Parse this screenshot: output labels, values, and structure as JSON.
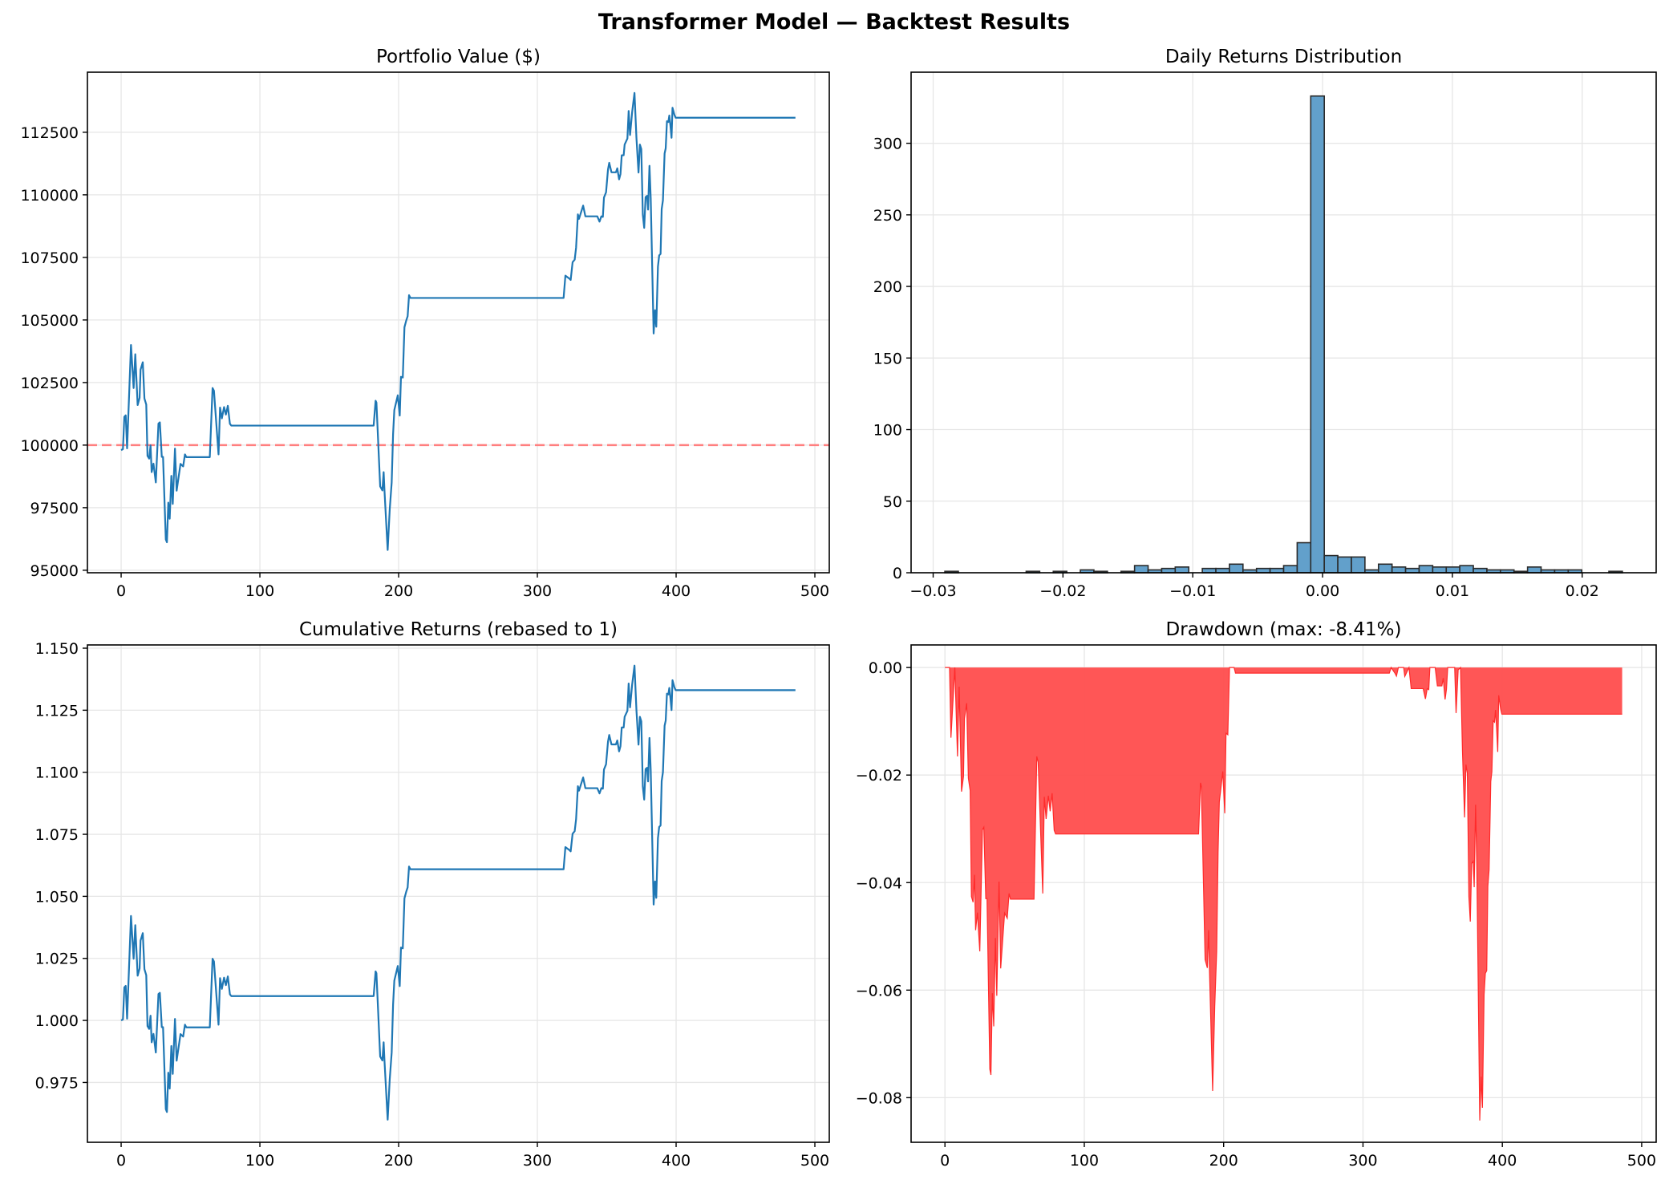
{
  "title": "Transformer Model — Backtest Results",
  "colors": {
    "line": "#1f77b4",
    "hist": "#62a0cb",
    "hist_edge": "#2b2b2b",
    "ref": "#ff7f7f",
    "dd_fill": "#ff4d4d",
    "dd_line": "#ff2a2a"
  },
  "chart_data": [
    {
      "type": "line",
      "title": "Portfolio Value ($)",
      "xlabel": "",
      "ylabel": "",
      "xlim": [
        -24.3,
        510.4
      ],
      "ylim": [
        94900,
        114900
      ],
      "grid": true,
      "xticks": [
        {
          "v": 0,
          "label": "0"
        },
        {
          "v": 100,
          "label": "100"
        },
        {
          "v": 200,
          "label": "200"
        },
        {
          "v": 300,
          "label": "300"
        },
        {
          "v": 400,
          "label": "400"
        },
        {
          "v": 500,
          "label": "500"
        }
      ],
      "yticks": [
        {
          "v": 95000,
          "label": "95000"
        },
        {
          "v": 97500,
          "label": "97500"
        },
        {
          "v": 100000,
          "label": "100000"
        },
        {
          "v": 102500,
          "label": "102500"
        },
        {
          "v": 105000,
          "label": "105000"
        },
        {
          "v": 107500,
          "label": "107500"
        },
        {
          "v": 110000,
          "label": "110000"
        },
        {
          "v": 112500,
          "label": "112500"
        }
      ],
      "reference_line": {
        "y": 100000,
        "style": "dashed"
      },
      "points": [
        [
          0,
          99800
        ],
        [
          1.3,
          99840
        ],
        [
          2.3,
          101130
        ],
        [
          3.3,
          101190
        ],
        [
          4.3,
          99870
        ],
        [
          7.1,
          104000
        ],
        [
          9,
          102280
        ],
        [
          10.2,
          103630
        ],
        [
          11.9,
          101600
        ],
        [
          13.3,
          101890
        ],
        [
          14,
          103010
        ],
        [
          15.6,
          103310
        ],
        [
          16.8,
          101860
        ],
        [
          18.1,
          101620
        ],
        [
          19,
          99570
        ],
        [
          20.2,
          99460
        ],
        [
          21.2,
          99990
        ],
        [
          22,
          98920
        ],
        [
          23.3,
          99260
        ],
        [
          25,
          98510
        ],
        [
          26.9,
          100860
        ],
        [
          27.9,
          100910
        ],
        [
          29.3,
          99530
        ],
        [
          30.2,
          99530
        ],
        [
          32.2,
          96230
        ],
        [
          33,
          96120
        ],
        [
          34,
          97700
        ],
        [
          35,
          97060
        ],
        [
          36.2,
          98770
        ],
        [
          37.2,
          97650
        ],
        [
          38.8,
          99860
        ],
        [
          40,
          98180
        ],
        [
          42.8,
          99250
        ],
        [
          44.7,
          99150
        ],
        [
          46,
          99630
        ],
        [
          47,
          99520
        ],
        [
          63.9,
          99520
        ],
        [
          65.9,
          102280
        ],
        [
          66.9,
          102170
        ],
        [
          70.2,
          99630
        ],
        [
          71.3,
          101500
        ],
        [
          72.6,
          101070
        ],
        [
          74.2,
          101520
        ],
        [
          75.5,
          101220
        ],
        [
          76.9,
          101570
        ],
        [
          78.4,
          100850
        ],
        [
          79.4,
          100780
        ],
        [
          182,
          100780
        ],
        [
          183.4,
          101770
        ],
        [
          184,
          101700
        ],
        [
          186.7,
          98350
        ],
        [
          188.3,
          98190
        ],
        [
          189.2,
          98920
        ],
        [
          189.8,
          98190
        ],
        [
          192.1,
          95810
        ],
        [
          193.6,
          97440
        ],
        [
          195,
          98510
        ],
        [
          196,
          100430
        ],
        [
          196.9,
          101400
        ],
        [
          199.4,
          101990
        ],
        [
          200.8,
          101180
        ],
        [
          201.7,
          102730
        ],
        [
          203,
          102700
        ],
        [
          204.2,
          104710
        ],
        [
          205.5,
          104980
        ],
        [
          206.5,
          105150
        ],
        [
          207.5,
          105990
        ],
        [
          208.5,
          105880
        ],
        [
          318.9,
          105880
        ],
        [
          320.2,
          106770
        ],
        [
          323.1,
          106650
        ],
        [
          324,
          106600
        ],
        [
          325.4,
          107310
        ],
        [
          326.9,
          107410
        ],
        [
          327.9,
          107890
        ],
        [
          329.2,
          109220
        ],
        [
          330,
          109040
        ],
        [
          333,
          109570
        ],
        [
          334.6,
          109140
        ],
        [
          343.2,
          109140
        ],
        [
          344.8,
          108930
        ],
        [
          346.1,
          109140
        ],
        [
          347.2,
          109120
        ],
        [
          348,
          109890
        ],
        [
          349.5,
          110100
        ],
        [
          350.9,
          111010
        ],
        [
          351.8,
          111280
        ],
        [
          353.4,
          110900
        ],
        [
          356.6,
          110900
        ],
        [
          357.6,
          111060
        ],
        [
          358.9,
          110620
        ],
        [
          359.9,
          110830
        ],
        [
          360.8,
          111580
        ],
        [
          362.2,
          111580
        ],
        [
          362.9,
          112010
        ],
        [
          364.9,
          112250
        ],
        [
          365.8,
          113350
        ],
        [
          366.8,
          112390
        ],
        [
          368.3,
          113300
        ],
        [
          370,
          114070
        ],
        [
          371.4,
          112280
        ],
        [
          372.9,
          110890
        ],
        [
          373.9,
          112010
        ],
        [
          374.9,
          111830
        ],
        [
          376,
          109210
        ],
        [
          377,
          108680
        ],
        [
          378,
          109910
        ],
        [
          379.1,
          109960
        ],
        [
          379.8,
          109410
        ],
        [
          380.8,
          111160
        ],
        [
          381.7,
          109860
        ],
        [
          383.8,
          104460
        ],
        [
          384.8,
          105390
        ],
        [
          385.7,
          104730
        ],
        [
          386.9,
          107130
        ],
        [
          387.8,
          107580
        ],
        [
          388.8,
          107640
        ],
        [
          389.6,
          109430
        ],
        [
          390.5,
          109780
        ],
        [
          391.7,
          111650
        ],
        [
          392.5,
          111860
        ],
        [
          393.4,
          112940
        ],
        [
          394.4,
          112910
        ],
        [
          395.1,
          113170
        ],
        [
          395.9,
          112770
        ],
        [
          396.7,
          112280
        ],
        [
          397.4,
          113480
        ],
        [
          398.8,
          113190
        ],
        [
          399.7,
          113080
        ],
        [
          486,
          113080
        ]
      ]
    },
    {
      "type": "bar",
      "title": "Daily Returns Distribution",
      "xlabel": "",
      "ylabel": "",
      "xlim": [
        -0.0317,
        0.0257
      ],
      "ylim": [
        0,
        349.65
      ],
      "grid": true,
      "xticks": [
        {
          "v": -0.03,
          "label": "−0.03"
        },
        {
          "v": -0.02,
          "label": "−0.02"
        },
        {
          "v": -0.01,
          "label": "−0.01"
        },
        {
          "v": 0,
          "label": "0.00"
        },
        {
          "v": 0.01,
          "label": "0.01"
        },
        {
          "v": 0.02,
          "label": "0.02"
        }
      ],
      "yticks": [
        {
          "v": 0,
          "label": "0"
        },
        {
          "v": 50,
          "label": "50"
        },
        {
          "v": 100,
          "label": "100"
        },
        {
          "v": 150,
          "label": "150"
        },
        {
          "v": 200,
          "label": "200"
        },
        {
          "v": 250,
          "label": "250"
        },
        {
          "v": 300,
          "label": "300"
        }
      ],
      "bin_start": -0.0291,
      "bin_width": 0.001044,
      "counts": [
        1,
        0,
        0,
        0,
        0,
        0,
        1,
        0,
        1,
        0,
        2,
        1,
        0,
        1,
        5,
        2,
        3,
        4,
        0,
        3,
        3,
        6,
        2,
        3,
        3,
        5,
        21,
        333,
        12,
        11,
        11,
        2,
        6,
        4,
        3,
        5,
        4,
        4,
        5,
        3,
        2,
        2,
        1,
        4,
        2,
        2,
        2,
        0,
        0,
        1
      ]
    },
    {
      "type": "line",
      "title": "Cumulative Returns (rebased to 1)",
      "xlabel": "",
      "ylabel": "",
      "xlim": [
        -24.3,
        510.4
      ],
      "ylim": [
        0.9509,
        1.1513
      ],
      "grid": true,
      "derived_from": "portfolio value divided by first value",
      "xticks": [
        {
          "v": 0,
          "label": "0"
        },
        {
          "v": 100,
          "label": "100"
        },
        {
          "v": 200,
          "label": "200"
        },
        {
          "v": 300,
          "label": "300"
        },
        {
          "v": 400,
          "label": "400"
        },
        {
          "v": 500,
          "label": "500"
        }
      ],
      "yticks": [
        {
          "v": 0.975,
          "label": "0.975"
        },
        {
          "v": 1.0,
          "label": "1.000"
        },
        {
          "v": 1.025,
          "label": "1.025"
        },
        {
          "v": 1.05,
          "label": "1.050"
        },
        {
          "v": 1.075,
          "label": "1.075"
        },
        {
          "v": 1.1,
          "label": "1.100"
        },
        {
          "v": 1.125,
          "label": "1.125"
        },
        {
          "v": 1.15,
          "label": "1.150"
        }
      ]
    },
    {
      "type": "area",
      "title": "Drawdown (max: -8.41%)",
      "xlabel": "",
      "ylabel": "",
      "xlim": [
        -24.3,
        510.4
      ],
      "ylim": [
        -0.0883,
        0.0042
      ],
      "grid": true,
      "max_drawdown": -0.0841,
      "derived_from": "portfolio value / running max - 1",
      "xticks": [
        {
          "v": 0,
          "label": "0"
        },
        {
          "v": 100,
          "label": "100"
        },
        {
          "v": 200,
          "label": "200"
        },
        {
          "v": 300,
          "label": "300"
        },
        {
          "v": 400,
          "label": "400"
        },
        {
          "v": 500,
          "label": "500"
        }
      ],
      "yticks": [
        {
          "v": -0.08,
          "label": "−0.08"
        },
        {
          "v": -0.06,
          "label": "−0.06"
        },
        {
          "v": -0.04,
          "label": "−0.04"
        },
        {
          "v": -0.02,
          "label": "−0.02"
        },
        {
          "v": 0,
          "label": "0.00"
        }
      ]
    }
  ]
}
